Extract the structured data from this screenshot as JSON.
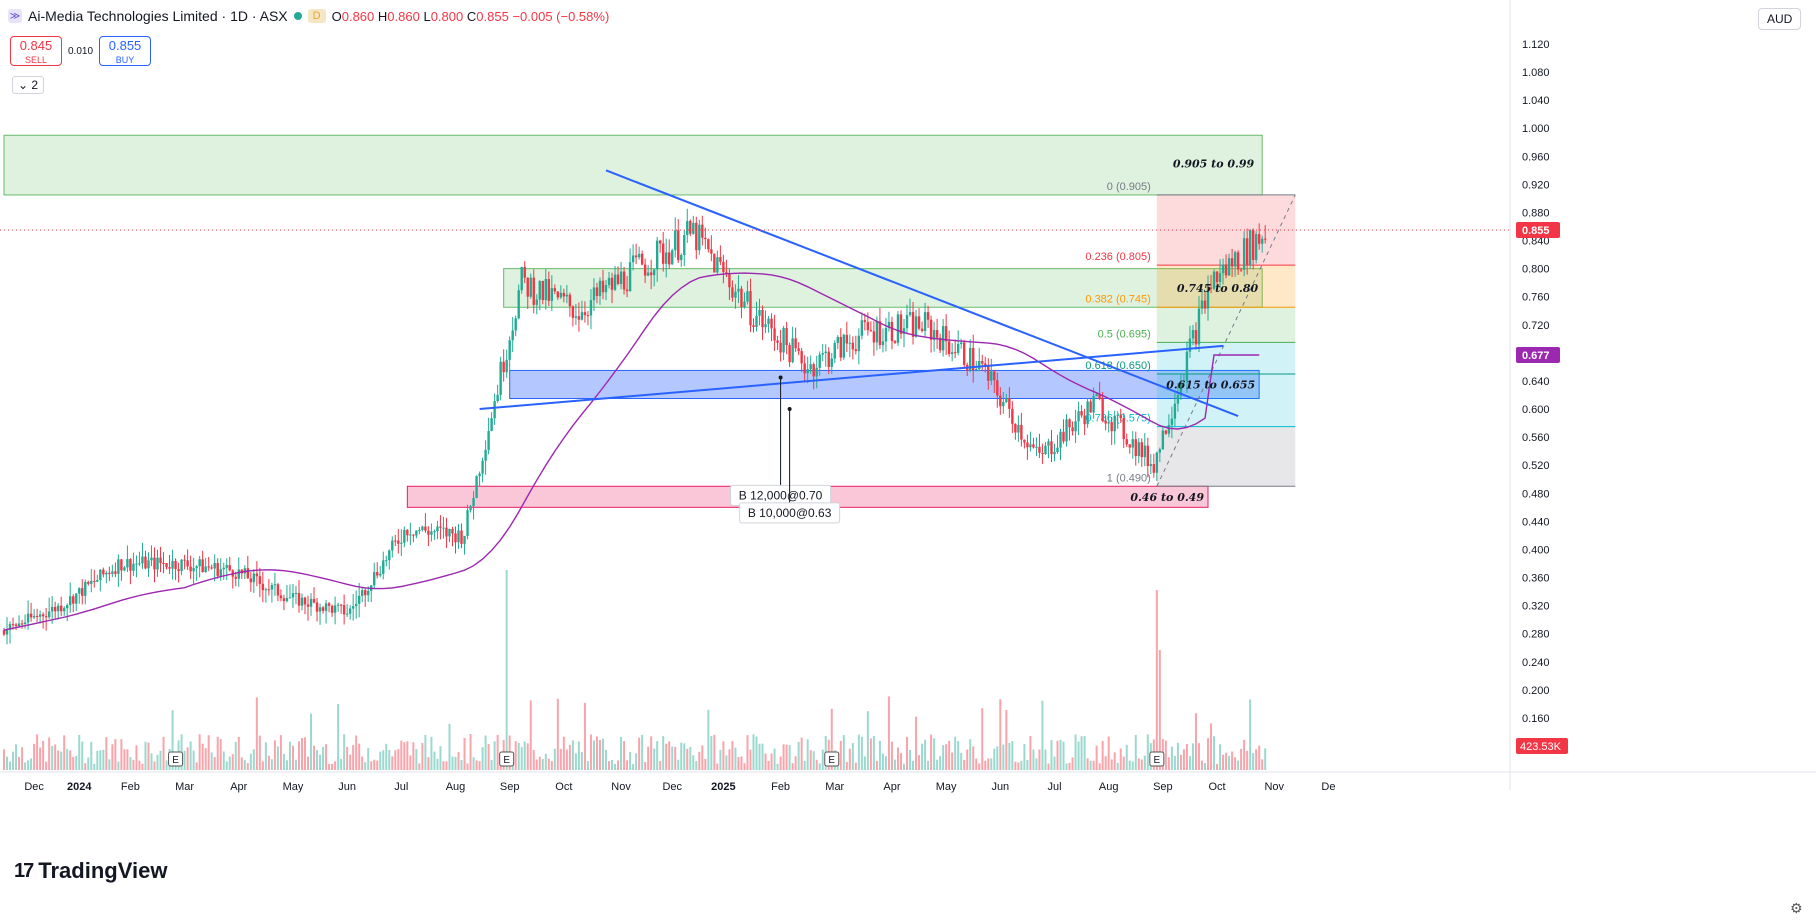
{
  "header": {
    "title": "Ai-Media Technologies Limited · 1D · ASX",
    "interval_badge": "D",
    "ohlc": [
      {
        "label": "O",
        "value": "0.860"
      },
      {
        "label": "H",
        "value": "0.860"
      },
      {
        "label": "L",
        "value": "0.800"
      },
      {
        "label": "C",
        "value": "0.855"
      },
      {
        "label": "",
        "value": "−0.005 (−0.58%)"
      }
    ]
  },
  "trade": {
    "sell_price": "0.845",
    "sell_label": "SELL",
    "spread": "0.010",
    "buy_price": "0.855",
    "buy_label": "BUY"
  },
  "indicators_toggle": "2",
  "currency": "AUD",
  "brand": "TradingView",
  "colors": {
    "up": "#22ab94",
    "down": "#f23645",
    "trend": "#2962ff",
    "ma": "#9c27b0",
    "zone_green": "#4caf50",
    "zone_blue": "#2962ff",
    "zone_pink": "#e91e63"
  },
  "chart_data": {
    "type": "candlestick",
    "y_ticks": [
      "1.120",
      "1.080",
      "1.040",
      "1.000",
      "0.960",
      "0.920",
      "0.880",
      "0.840",
      "0.800",
      "0.760",
      "0.720",
      "0.680",
      "0.640",
      "0.600",
      "0.560",
      "0.520",
      "0.480",
      "0.440",
      "0.400",
      "0.360",
      "0.320",
      "0.280",
      "0.240",
      "0.200",
      "0.160",
      "0.120"
    ],
    "ylim": [
      0.09,
      1.14
    ],
    "x_labels": [
      "Dec",
      "2024",
      "Feb",
      "Mar",
      "Apr",
      "May",
      "Jun",
      "Jul",
      "Aug",
      "Sep",
      "Oct",
      "Nov",
      "Dec",
      "2025",
      "Feb",
      "Mar",
      "Apr",
      "May",
      "Jun",
      "Jul",
      "Aug",
      "Sep",
      "Oct",
      "Nov",
      "De"
    ],
    "bold_x_labels": [
      "2024",
      "2025"
    ],
    "x_index_range": [
      0,
      499
    ],
    "x_label_index": [
      10,
      25,
      42,
      60,
      78,
      96,
      114,
      132,
      150,
      168,
      186,
      205,
      222,
      239,
      258,
      276,
      295,
      313,
      331,
      349,
      367,
      385,
      403,
      422,
      440
    ],
    "last_price_label": "0.855",
    "last_price": 0.855,
    "ma_label": "0.677",
    "ma_value": 0.677,
    "volume_label": "423.53K",
    "trendlines": [
      {
        "name": "descending-trendline",
        "from": [
          200,
          0.94
        ],
        "to": [
          410,
          0.59
        ]
      },
      {
        "name": "ascending-trendline",
        "from": [
          158,
          0.6
        ],
        "to": [
          405,
          0.69
        ]
      }
    ],
    "zones": [
      {
        "name": "zone-upper",
        "from_index": 0,
        "to_index": 418,
        "y0": 0.905,
        "y1": 0.99,
        "color": "green"
      },
      {
        "name": "zone-mid",
        "from_index": 166,
        "to_index": 418,
        "y0": 0.745,
        "y1": 0.8,
        "color": "green",
        "label": "0.745 to 0.80"
      },
      {
        "name": "zone-support",
        "from_index": 168,
        "to_index": 417,
        "y0": 0.615,
        "y1": 0.655,
        "color": "blue",
        "label": "0.615 to 0.655"
      },
      {
        "name": "zone-low",
        "from_index": 134,
        "to_index": 400,
        "y0": 0.46,
        "y1": 0.49,
        "color": "pink",
        "label": "0.46 to 0.49"
      }
    ],
    "zone_labels": [
      "0.905 to 0.99",
      "0.745 to 0.80",
      "0.615 to 0.655",
      "0.46 to 0.49"
    ],
    "fib_levels": [
      {
        "label": "0 (0.905)",
        "value": 0.905
      },
      {
        "label": "0.236 (0.805)",
        "value": 0.805
      },
      {
        "label": "0.382 (0.745)",
        "value": 0.745
      },
      {
        "label": "0.5 (0.695)",
        "value": 0.695
      },
      {
        "label": "0.618 (0.650)",
        "value": 0.65
      },
      {
        "label": "0.786 (0.575)",
        "value": 0.575
      },
      {
        "label": "1 (0.490)",
        "value": 0.49
      }
    ],
    "fib_from_index": 383,
    "fib_to_index": 429,
    "annotations": [
      {
        "text": "B 12,000@0.70",
        "at_index": 258,
        "price": 0.645,
        "label_price": 0.477
      },
      {
        "text": "B 10,000@0.63",
        "at_index": 261,
        "price": 0.6,
        "label_price": 0.452
      }
    ],
    "earnings_markers": [
      57,
      167,
      275,
      383
    ],
    "earnings_label": "E",
    "summary_ohlc": [
      {
        "month": "Dec",
        "close": 0.285
      },
      {
        "month": "Jan",
        "close": 0.32
      },
      {
        "month": "Feb",
        "close": 0.38
      },
      {
        "month": "Mar",
        "close": 0.38
      },
      {
        "month": "Apr",
        "close": 0.37
      },
      {
        "month": "May",
        "close": 0.33
      },
      {
        "month": "Jun",
        "close": 0.31
      },
      {
        "month": "Jul",
        "close": 0.43
      },
      {
        "month": "Aug",
        "close": 0.42
      },
      {
        "month": "Sep",
        "close": 0.78
      },
      {
        "month": "Oct",
        "close": 0.74
      },
      {
        "month": "Nov",
        "close": 0.8
      },
      {
        "month": "Dec",
        "close": 0.85
      },
      {
        "month": "Jan",
        "close": 0.74
      },
      {
        "month": "Feb",
        "close": 0.66
      },
      {
        "month": "Mar",
        "close": 0.71
      },
      {
        "month": "Apr",
        "close": 0.72
      },
      {
        "month": "May",
        "close": 0.66
      },
      {
        "month": "Jun",
        "close": 0.53
      },
      {
        "month": "Jul",
        "close": 0.61
      },
      {
        "month": "Aug",
        "close": 0.52
      },
      {
        "month": "Sep",
        "close": 0.78
      },
      {
        "month": "Oct",
        "close": 0.855
      }
    ]
  }
}
